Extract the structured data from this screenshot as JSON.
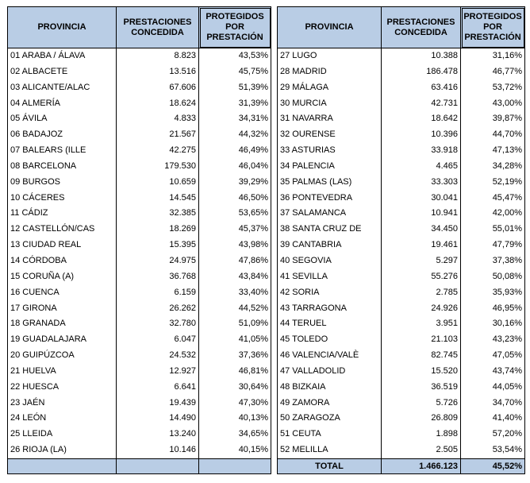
{
  "headers": {
    "provincia": "PROVINCIA",
    "prestaciones": "PRESTACIONES CONCEDIDA",
    "protegidos": "PROTEGIDOS POR PRESTACIÓN"
  },
  "left_rows": [
    [
      "01 ARABA / ÁLAVA",
      "8.823",
      "43,53%"
    ],
    [
      "02 ALBACETE",
      "13.516",
      "45,75%"
    ],
    [
      "03 ALICANTE/ALAC",
      "67.606",
      "51,39%"
    ],
    [
      "04 ALMERÍA",
      "18.624",
      "31,39%"
    ],
    [
      "05 ÁVILA",
      "4.833",
      "34,31%"
    ],
    [
      "06 BADAJOZ",
      "21.567",
      "44,32%"
    ],
    [
      "07 BALEARS (ILLE",
      "42.275",
      "46,49%"
    ],
    [
      "08 BARCELONA",
      "179.530",
      "46,04%"
    ],
    [
      "09 BURGOS",
      "10.659",
      "39,29%"
    ],
    [
      "10 CÁCERES",
      "14.545",
      "46,50%"
    ],
    [
      "11 CÁDIZ",
      "32.385",
      "53,65%"
    ],
    [
      "12 CASTELLÓN/CAS",
      "18.269",
      "45,37%"
    ],
    [
      "13 CIUDAD REAL",
      "15.395",
      "43,98%"
    ],
    [
      "14 CÓRDOBA",
      "24.975",
      "47,86%"
    ],
    [
      "15 CORUÑA (A)",
      "36.768",
      "43,84%"
    ],
    [
      "16 CUENCA",
      "6.159",
      "33,40%"
    ],
    [
      "17 GIRONA",
      "26.262",
      "44,52%"
    ],
    [
      "18 GRANADA",
      "32.780",
      "51,09%"
    ],
    [
      "19 GUADALAJARA",
      "6.047",
      "41,05%"
    ],
    [
      "20 GUIPÚZCOA",
      "24.532",
      "37,36%"
    ],
    [
      "21 HUELVA",
      "12.927",
      "46,81%"
    ],
    [
      "22 HUESCA",
      "6.641",
      "30,64%"
    ],
    [
      "23 JAÉN",
      "19.439",
      "47,30%"
    ],
    [
      "24 LEÓN",
      "14.490",
      "40,13%"
    ],
    [
      "25 LLEIDA",
      "13.240",
      "34,65%"
    ],
    [
      "26 RIOJA (LA)",
      "10.146",
      "40,15%"
    ]
  ],
  "right_rows": [
    [
      "27 LUGO",
      "10.388",
      "31,16%"
    ],
    [
      "28 MADRID",
      "186.478",
      "46,77%"
    ],
    [
      "29 MÁLAGA",
      "63.416",
      "53,72%"
    ],
    [
      "30 MURCIA",
      "42.731",
      "43,00%"
    ],
    [
      "31 NAVARRA",
      "18.642",
      "39,87%"
    ],
    [
      "32 OURENSE",
      "10.396",
      "44,70%"
    ],
    [
      "33 ASTURIAS",
      "33.918",
      "47,13%"
    ],
    [
      "34 PALENCIA",
      "4.465",
      "34,28%"
    ],
    [
      "35 PALMAS (LAS)",
      "33.303",
      "52,19%"
    ],
    [
      "36 PONTEVEDRA",
      "30.041",
      "45,47%"
    ],
    [
      "37 SALAMANCA",
      "10.941",
      "42,00%"
    ],
    [
      "38 SANTA CRUZ DE",
      "34.450",
      "55,01%"
    ],
    [
      "39 CANTABRIA",
      "19.461",
      "47,79%"
    ],
    [
      "40 SEGOVIA",
      "5.297",
      "37,38%"
    ],
    [
      "41 SEVILLA",
      "55.276",
      "50,08%"
    ],
    [
      "42 SORIA",
      "2.785",
      "35,93%"
    ],
    [
      "43 TARRAGONA",
      "24.926",
      "46,95%"
    ],
    [
      "44 TERUEL",
      "3.951",
      "30,16%"
    ],
    [
      "45 TOLEDO",
      "21.103",
      "43,23%"
    ],
    [
      "46 VALENCIA/VALÈ",
      "82.745",
      "47,05%"
    ],
    [
      "47 VALLADOLID",
      "15.520",
      "43,74%"
    ],
    [
      "48 BIZKAIA",
      "36.519",
      "44,05%"
    ],
    [
      "49 ZAMORA",
      "5.726",
      "34,70%"
    ],
    [
      "50 ZARAGOZA",
      "26.809",
      "41,40%"
    ],
    [
      "51 CEUTA",
      "1.898",
      "57,20%"
    ],
    [
      "52 MELILLA",
      "2.505",
      "53,54%"
    ]
  ],
  "total": {
    "label": "TOTAL",
    "prestaciones": "1.466.123",
    "protegidos": "45,52%"
  },
  "colors": {
    "header_bg": "#b9cde5",
    "border": "#000000"
  }
}
